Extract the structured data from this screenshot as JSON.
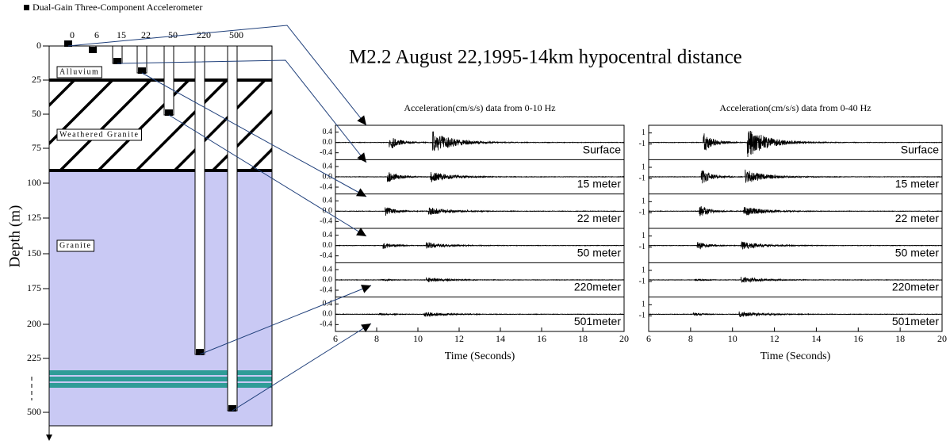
{
  "legend": "Dual-Gain Three-Component Accelerometer",
  "title": "M2.2 August 22,1995-14km hypocentral distance",
  "diagram": {
    "y_label": "Depth (m)",
    "depth_ticks": [
      "0",
      "25",
      "50",
      "75",
      "100",
      "125",
      "150",
      "175",
      "200",
      "225",
      "500"
    ],
    "borehole_labels": [
      "0",
      "6",
      "15",
      "22",
      "50",
      "220",
      "500"
    ],
    "layers": [
      "Alluvium",
      "Weathered Granite",
      "Granite"
    ]
  },
  "panels": [
    {
      "title": "Acceleration(cm/s/s) data from 0-10 Hz",
      "yticks": [
        "0.4",
        "0.0",
        "-0.4"
      ],
      "xticks": [
        "6",
        "8",
        "10",
        "12",
        "14",
        "16",
        "18",
        "20"
      ],
      "x_label": "Time (Seconds)",
      "traces": [
        "Surface",
        "15 meter",
        "22 meter",
        "50 meter",
        "220meter",
        "501meter"
      ]
    },
    {
      "title": "Acceleration(cm/s/s) data from 0-40 Hz",
      "yticks": [
        "1",
        "-1"
      ],
      "xticks": [
        "6",
        "8",
        "10",
        "12",
        "14",
        "16",
        "18",
        "20"
      ],
      "x_label": "Time (Seconds)",
      "traces": [
        "Surface",
        "15 meter",
        "22 meter",
        "50 meter",
        "220meter",
        "501meter"
      ]
    }
  ]
}
